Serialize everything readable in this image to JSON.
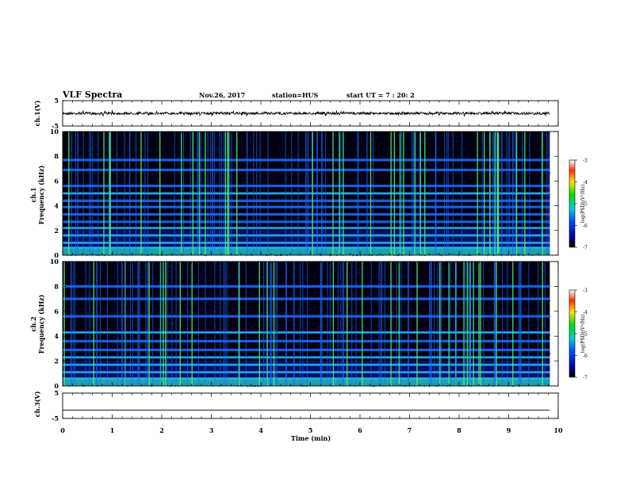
{
  "header": {
    "title": "VLF Spectra",
    "date": "Nov.26, 2017",
    "station": "station=HUS",
    "start": "start  UT =   7 : 20: 2"
  },
  "chart_data": [
    {
      "type": "line",
      "name": "ch1-waveform",
      "ylabel": "ch.1(V)",
      "ylim": [
        -5,
        5
      ],
      "yticks": [
        "5",
        "-5"
      ],
      "baseline": 0,
      "xlim": [
        0,
        10
      ]
    },
    {
      "type": "heatmap",
      "name": "ch1-spectrogram",
      "ylabel_top": "ch.1",
      "ylabel": "Frequency  (kHz)",
      "ylim": [
        0,
        10
      ],
      "yticks": [
        "0",
        "2",
        "4",
        "6",
        "8",
        "10"
      ],
      "xlim": [
        0,
        10
      ],
      "x_end_min": 9.83,
      "bands_khz": [
        0.6,
        1.0,
        1.6,
        2.2,
        2.7,
        3.3,
        3.9,
        4.4,
        5.0,
        5.6,
        6.9,
        7.7
      ],
      "colorbar": {
        "label": "log(PSD)(V²/Hz)",
        "ticks": [
          "-3",
          "-4",
          "-5",
          "-6",
          "-7"
        ],
        "range": [
          -7,
          -3
        ]
      }
    },
    {
      "type": "heatmap",
      "name": "ch2-spectrogram",
      "ylabel_top": "ch.2",
      "ylabel": "Frequency  (kHz)",
      "ylim": [
        0,
        10
      ],
      "yticks": [
        "0",
        "2",
        "4",
        "6",
        "8",
        "10"
      ],
      "xlim": [
        0,
        10
      ],
      "x_end_min": 9.83,
      "bands_khz": [
        0.6,
        1.1,
        1.7,
        2.3,
        2.9,
        3.6,
        4.3,
        5.6,
        7.0,
        8.0
      ],
      "colorbar": {
        "label": "log(PSD)(V²/Hz)",
        "ticks": [
          "-3",
          "-4",
          "-5",
          "-6",
          "-7"
        ],
        "range": [
          -7,
          -3
        ]
      }
    },
    {
      "type": "line",
      "name": "ch3-waveform",
      "ylabel": "ch.3(V)",
      "ylim": [
        -5,
        5
      ],
      "yticks": [
        "5",
        "-5"
      ],
      "baseline": -1.7,
      "xlim": [
        0,
        10
      ]
    }
  ],
  "xaxis": {
    "label": "Time  (min)",
    "ticks": [
      "0",
      "1",
      "2",
      "3",
      "4",
      "5",
      "6",
      "7",
      "8",
      "9",
      "10"
    ]
  },
  "colors": {
    "background": "#000010",
    "noise": "#0a1e9a",
    "band": "#1e6cff",
    "band_bright": "#25d2c8",
    "sferic": "#4cf07a"
  }
}
